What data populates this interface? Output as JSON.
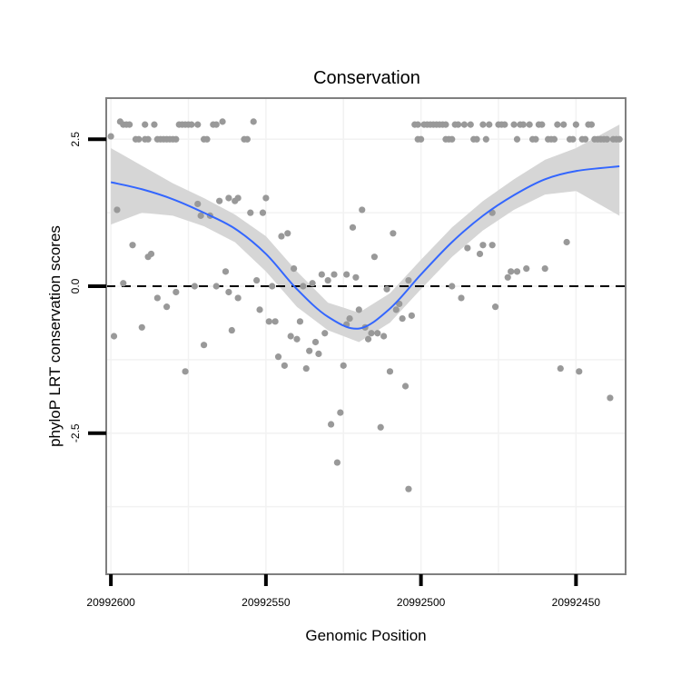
{
  "chart_data": {
    "type": "scatter",
    "title": "Conservation",
    "xlabel": "Genomic Position",
    "ylabel": "phyloP LRT conservation scores",
    "x_reversed": true,
    "xlim": [
      20992601.5,
      20992434
    ],
    "ylim": [
      -4.9,
      3.2
    ],
    "x_ticks": [
      {
        "value": 20992600,
        "label": "20992600"
      },
      {
        "value": 20992550,
        "label": "20992550"
      },
      {
        "value": 20992500,
        "label": "20992500"
      },
      {
        "value": 20992450,
        "label": "20992450"
      }
    ],
    "y_ticks": [
      {
        "value": 2.5,
        "label": "2.5"
      },
      {
        "value": 0,
        "label": "0.0"
      },
      {
        "value": -2.5,
        "label": "-2.5"
      }
    ],
    "grid": true,
    "reference_line": {
      "y": 0,
      "style": "dashed"
    },
    "colors": {
      "points": "#999999",
      "smooth_line": "#3366ff",
      "confidence_band": "#d6d6d6",
      "grid": "#f2f2f2",
      "panel_border": "#7f7f7f"
    },
    "series": [
      {
        "kind": "points",
        "points": [
          [
            20992600,
            2.55
          ],
          [
            20992599,
            -0.85
          ],
          [
            20992598,
            1.3
          ],
          [
            20992597,
            2.8
          ],
          [
            20992596,
            0.05
          ],
          [
            20992596,
            2.75
          ],
          [
            20992595,
            2.75
          ],
          [
            20992594,
            2.75
          ],
          [
            20992593,
            0.7
          ],
          [
            20992592,
            2.5
          ],
          [
            20992591,
            2.5
          ],
          [
            20992590,
            -0.7
          ],
          [
            20992589,
            2.5
          ],
          [
            20992589,
            2.75
          ],
          [
            20992588,
            0.5
          ],
          [
            20992588,
            2.5
          ],
          [
            20992587,
            0.55
          ],
          [
            20992586,
            2.75
          ],
          [
            20992585,
            -0.2
          ],
          [
            20992585,
            2.5
          ],
          [
            20992584,
            2.5
          ],
          [
            20992583,
            2.5
          ],
          [
            20992582,
            -0.35
          ],
          [
            20992582,
            2.5
          ],
          [
            20992581,
            2.5
          ],
          [
            20992580,
            2.5
          ],
          [
            20992579,
            2.5
          ],
          [
            20992579,
            -0.1
          ],
          [
            20992578,
            2.75
          ],
          [
            20992577,
            2.75
          ],
          [
            20992576,
            2.75
          ],
          [
            20992576,
            -1.45
          ],
          [
            20992575,
            2.75
          ],
          [
            20992574,
            2.75
          ],
          [
            20992573,
            0
          ],
          [
            20992572,
            1.4
          ],
          [
            20992572,
            2.75
          ],
          [
            20992571,
            1.2
          ],
          [
            20992570,
            -1.0
          ],
          [
            20992570,
            2.5
          ],
          [
            20992569,
            2.5
          ],
          [
            20992568,
            1.2
          ],
          [
            20992567,
            2.75
          ],
          [
            20992566,
            2.75
          ],
          [
            20992566,
            0
          ],
          [
            20992565,
            1.45
          ],
          [
            20992564,
            2.8
          ],
          [
            20992563,
            0.25
          ],
          [
            20992562,
            -0.1
          ],
          [
            20992562,
            1.5
          ],
          [
            20992561,
            -0.75
          ],
          [
            20992560,
            1.45
          ],
          [
            20992559,
            1.5
          ],
          [
            20992559,
            -0.2
          ],
          [
            20992557,
            2.5
          ],
          [
            20992556,
            2.5
          ],
          [
            20992555,
            1.25
          ],
          [
            20992554,
            2.8
          ],
          [
            20992553,
            0.1
          ],
          [
            20992552,
            -0.4
          ],
          [
            20992551,
            1.25
          ],
          [
            20992550,
            1.5
          ],
          [
            20992549,
            -0.6
          ],
          [
            20992548,
            0
          ],
          [
            20992547,
            -0.6
          ],
          [
            20992546,
            -1.2
          ],
          [
            20992545,
            0.85
          ],
          [
            20992544,
            -1.35
          ],
          [
            20992543,
            0.9
          ],
          [
            20992542,
            -0.85
          ],
          [
            20992541,
            0.3
          ],
          [
            20992540,
            -0.9
          ],
          [
            20992539,
            -0.6
          ],
          [
            20992538,
            0
          ],
          [
            20992537,
            -1.4
          ],
          [
            20992536,
            -1.1
          ],
          [
            20992535,
            0.05
          ],
          [
            20992534,
            -0.95
          ],
          [
            20992533,
            -1.15
          ],
          [
            20992532,
            0.2
          ],
          [
            20992531,
            -0.8
          ],
          [
            20992530,
            0.1
          ],
          [
            20992529,
            -2.35
          ],
          [
            20992528,
            0.2
          ],
          [
            20992527,
            -3.0
          ],
          [
            20992526,
            -2.15
          ],
          [
            20992525,
            -1.35
          ],
          [
            20992524,
            0.2
          ],
          [
            20992524,
            -0.65
          ],
          [
            20992523,
            -0.55
          ],
          [
            20992522,
            1.0
          ],
          [
            20992521,
            0.15
          ],
          [
            20992520,
            -0.4
          ],
          [
            20992519,
            1.3
          ],
          [
            20992518,
            -0.7
          ],
          [
            20992517,
            -0.9
          ],
          [
            20992516,
            -0.8
          ],
          [
            20992515,
            0.5
          ],
          [
            20992514,
            -0.8
          ],
          [
            20992513,
            -2.4
          ],
          [
            20992512,
            -0.85
          ],
          [
            20992511,
            -0.05
          ],
          [
            20992510,
            -1.45
          ],
          [
            20992509,
            0.9
          ],
          [
            20992508,
            -0.4
          ],
          [
            20992507,
            -0.3
          ],
          [
            20992506,
            -0.55
          ],
          [
            20992505,
            -1.7
          ],
          [
            20992504,
            0.1
          ],
          [
            20992504,
            -3.45
          ],
          [
            20992503,
            -0.5
          ],
          [
            20992502,
            2.75
          ],
          [
            20992501,
            2.75
          ],
          [
            20992501,
            2.5
          ],
          [
            20992500,
            2.5
          ],
          [
            20992499,
            2.75
          ],
          [
            20992498,
            2.75
          ],
          [
            20992497,
            2.75
          ],
          [
            20992496,
            2.75
          ],
          [
            20992495,
            2.75
          ],
          [
            20992494,
            2.75
          ],
          [
            20992493,
            2.75
          ],
          [
            20992492,
            2.75
          ],
          [
            20992492,
            2.5
          ],
          [
            20992491,
            2.5
          ],
          [
            20992490,
            2.5
          ],
          [
            20992490,
            0
          ],
          [
            20992489,
            2.75
          ],
          [
            20992488,
            2.75
          ],
          [
            20992487,
            -0.2
          ],
          [
            20992486,
            2.75
          ],
          [
            20992485,
            0.65
          ],
          [
            20992484,
            2.75
          ],
          [
            20992483,
            2.5
          ],
          [
            20992482,
            2.5
          ],
          [
            20992481,
            0.55
          ],
          [
            20992480,
            2.75
          ],
          [
            20992480,
            0.7
          ],
          [
            20992479,
            2.5
          ],
          [
            20992478,
            2.75
          ],
          [
            20992477,
            0.7
          ],
          [
            20992477,
            1.25
          ],
          [
            20992476,
            -0.35
          ],
          [
            20992475,
            2.75
          ],
          [
            20992474,
            2.75
          ],
          [
            20992473,
            2.75
          ],
          [
            20992472,
            0.15
          ],
          [
            20992471,
            0.25
          ],
          [
            20992470,
            2.75
          ],
          [
            20992469,
            2.5
          ],
          [
            20992469,
            0.25
          ],
          [
            20992468,
            2.75
          ],
          [
            20992467,
            2.75
          ],
          [
            20992466,
            0.3
          ],
          [
            20992465,
            2.75
          ],
          [
            20992464,
            2.5
          ],
          [
            20992463,
            2.5
          ],
          [
            20992462,
            2.75
          ],
          [
            20992461,
            2.75
          ],
          [
            20992460,
            0.3
          ],
          [
            20992459,
            2.5
          ],
          [
            20992458,
            2.5
          ],
          [
            20992457,
            2.5
          ],
          [
            20992456,
            2.75
          ],
          [
            20992455,
            -1.4
          ],
          [
            20992454,
            2.75
          ],
          [
            20992453,
            0.75
          ],
          [
            20992452,
            2.5
          ],
          [
            20992451,
            2.5
          ],
          [
            20992450,
            2.75
          ],
          [
            20992449,
            -1.45
          ],
          [
            20992448,
            2.5
          ],
          [
            20992447,
            2.5
          ],
          [
            20992446,
            2.75
          ],
          [
            20992445,
            2.75
          ],
          [
            20992444,
            2.5
          ],
          [
            20992443,
            2.5
          ],
          [
            20992442,
            2.5
          ],
          [
            20992441,
            2.5
          ],
          [
            20992440,
            2.5
          ],
          [
            20992439,
            -1.9
          ],
          [
            20992438,
            2.5
          ],
          [
            20992437,
            2.5
          ],
          [
            20992436,
            2.5
          ]
        ]
      },
      {
        "kind": "smooth",
        "x": [
          20992600,
          20992590,
          20992580,
          20992570,
          20992560,
          20992550,
          20992540,
          20992530,
          20992520,
          20992510,
          20992500,
          20992490,
          20992480,
          20992470,
          20992460,
          20992450,
          20992436
        ],
        "y": [
          1.77,
          1.65,
          1.48,
          1.25,
          0.98,
          0.55,
          -0.05,
          -0.52,
          -0.72,
          -0.38,
          0.2,
          0.75,
          1.2,
          1.55,
          1.82,
          1.96,
          2.04
        ],
        "lower": [
          1.05,
          1.25,
          1.2,
          1.02,
          0.75,
          0.25,
          -0.35,
          -0.75,
          -0.95,
          -0.62,
          -0.05,
          0.5,
          0.95,
          1.3,
          1.56,
          1.62,
          1.2
        ],
        "upper": [
          2.35,
          2.05,
          1.75,
          1.5,
          1.22,
          0.85,
          0.25,
          -0.28,
          -0.45,
          -0.12,
          0.45,
          1.0,
          1.45,
          1.82,
          2.15,
          2.35,
          2.75
        ]
      }
    ]
  }
}
